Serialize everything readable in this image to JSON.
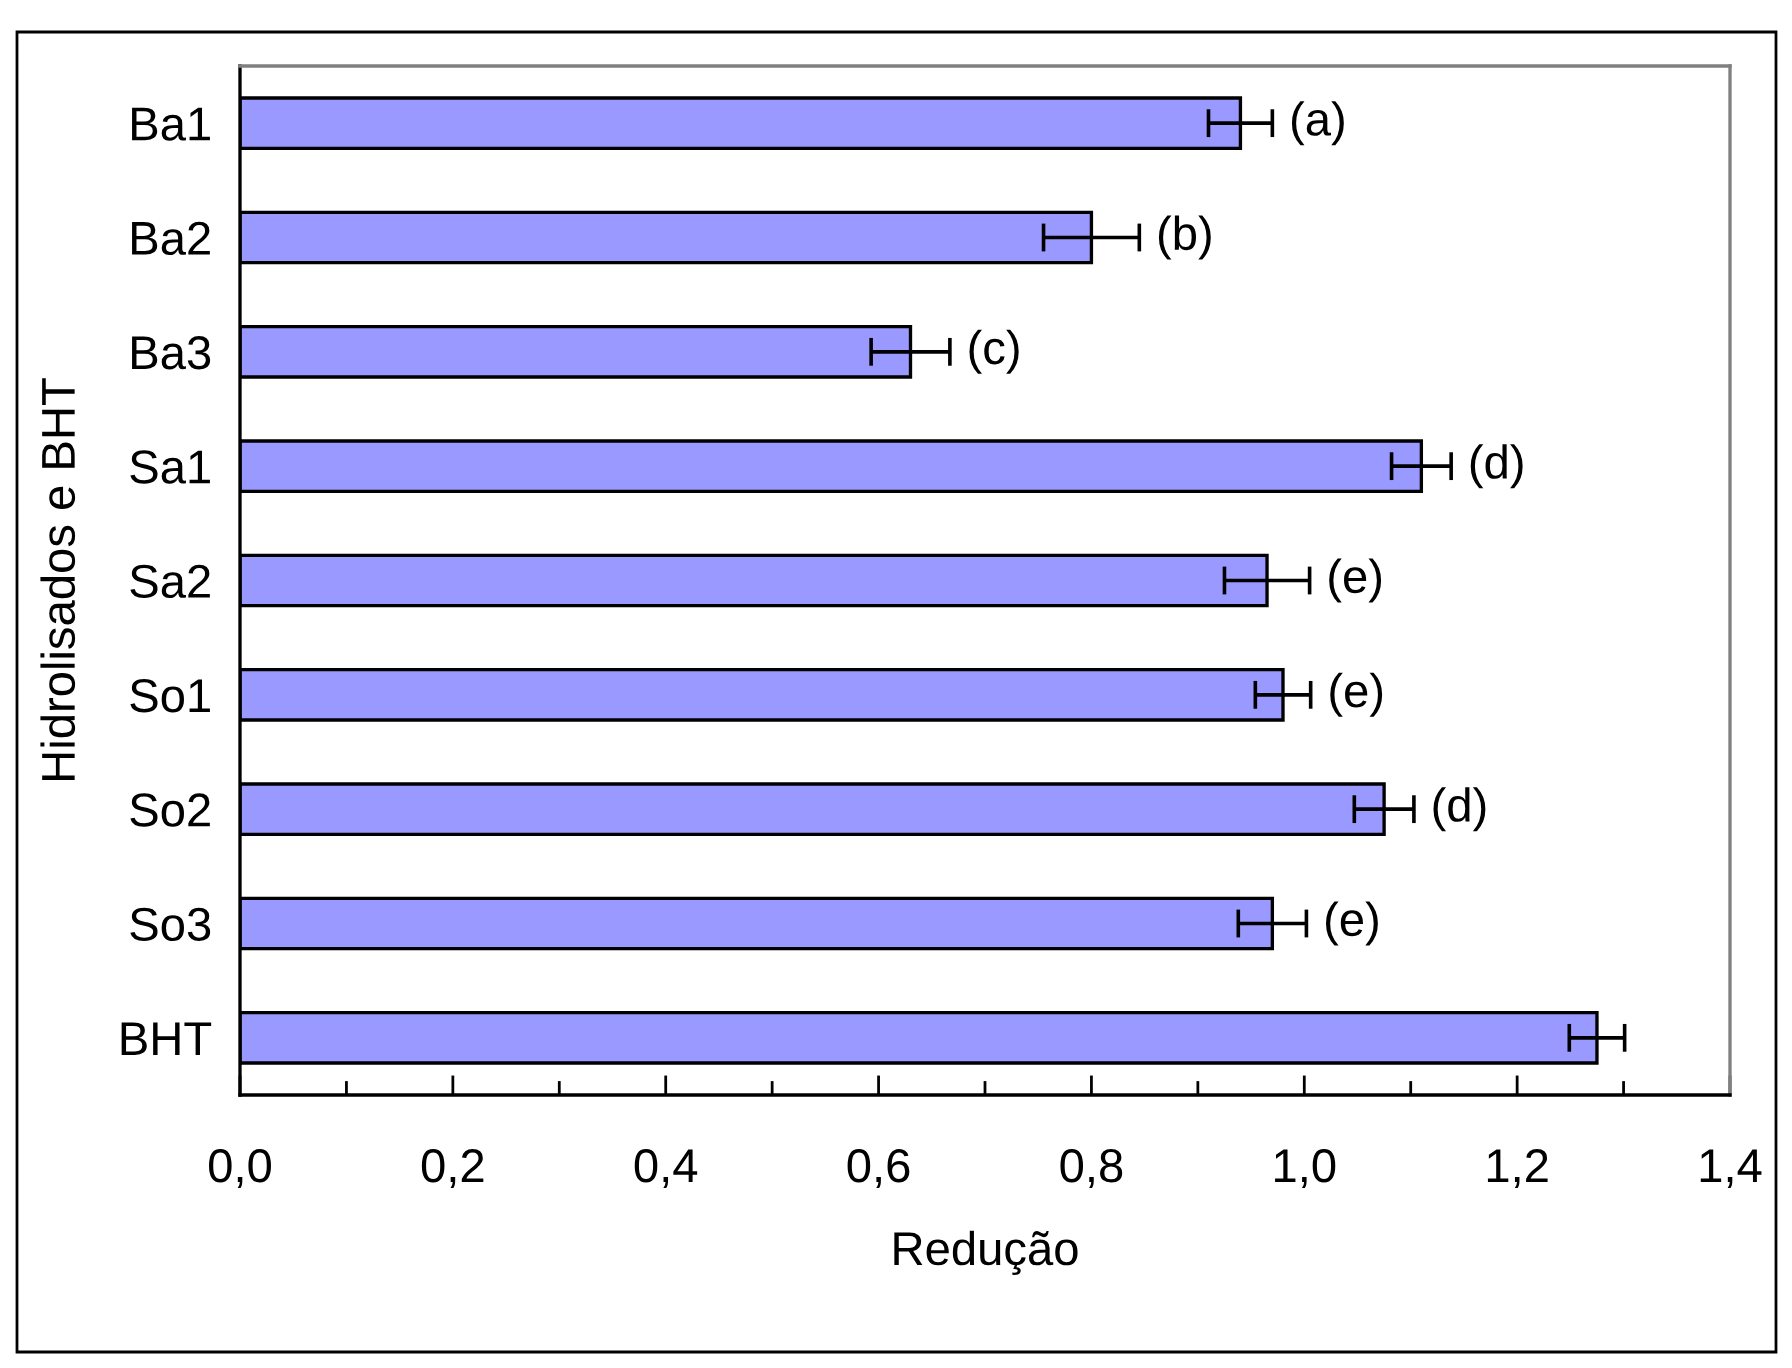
{
  "chart_data": {
    "type": "bar",
    "orientation": "horizontal",
    "categories": [
      "Ba1",
      "Ba2",
      "Ba3",
      "Sa1",
      "Sa2",
      "So1",
      "So2",
      "So3",
      "BHT"
    ],
    "values": [
      0.94,
      0.8,
      0.63,
      1.11,
      0.965,
      0.98,
      1.075,
      0.97,
      1.275
    ],
    "errors": [
      0.03,
      0.045,
      0.037,
      0.028,
      0.04,
      0.026,
      0.028,
      0.032,
      0.026
    ],
    "color": "#9999ff",
    "xlabel": "Redução",
    "ylabel": "Hidrolisados e BHT",
    "xlim": [
      0,
      1.4
    ],
    "xticks": [
      {
        "value": 0,
        "label": "0,0"
      },
      {
        "value": 0.1,
        "label": null
      },
      {
        "value": 0.2,
        "label": "0,2"
      },
      {
        "value": 0.3,
        "label": null
      },
      {
        "value": 0.4,
        "label": "0,4"
      },
      {
        "value": 0.5,
        "label": null
      },
      {
        "value": 0.6,
        "label": "0,6"
      },
      {
        "value": 0.7,
        "label": null
      },
      {
        "value": 0.8,
        "label": "0,8"
      },
      {
        "value": 0.9,
        "label": null
      },
      {
        "value": 1.0,
        "label": "1,0"
      },
      {
        "value": 1.1,
        "label": null
      },
      {
        "value": 1.2,
        "label": "1,2"
      },
      {
        "value": 1.3,
        "label": null
      },
      {
        "value": 1.4,
        "label": "1,4"
      }
    ],
    "grid": false,
    "annotations": [
      {
        "text": "(a)",
        "x": 0.94,
        "y": "Ba1"
      },
      {
        "text": "(b)",
        "x": 0.8,
        "y": "Ba2"
      },
      {
        "text": "(c)",
        "x": 0.63,
        "y": "Ba3"
      },
      {
        "text": "(d)",
        "x": 1.11,
        "y": "Sa1"
      },
      {
        "text": "(e)",
        "x": 0.965,
        "y": "Sa2"
      },
      {
        "text": "(e)",
        "x": 0.98,
        "y": "So1"
      },
      {
        "text": "(d)",
        "x": 1.075,
        "y": "So2"
      },
      {
        "text": "(e)",
        "x": 0.97,
        "y": "So3"
      }
    ]
  }
}
